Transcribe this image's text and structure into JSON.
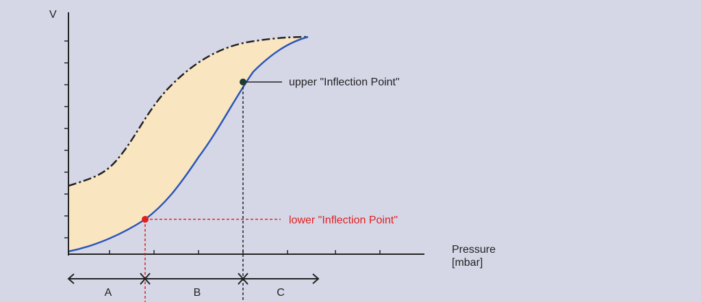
{
  "axes": {
    "y_label": "V",
    "x_label": "Pressure",
    "x_unit": "[mbar]"
  },
  "annotations": {
    "upper": "upper \"Inflection Point\"",
    "lower": "lower \"Inflection Point\""
  },
  "segments": [
    "A",
    "B",
    "C"
  ]
}
